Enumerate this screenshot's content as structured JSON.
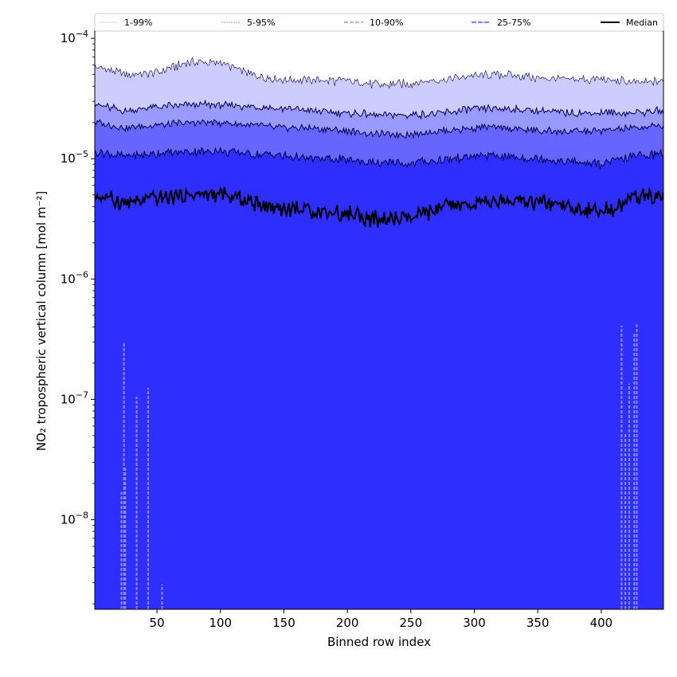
{
  "chart_data": {
    "type": "area",
    "xlabel": "Binned row index",
    "ylabel": "NO₂ tropospheric vertical column [mol m⁻²]",
    "yscale": "log",
    "xlim": [
      1,
      449
    ],
    "ylim": [
      1.8e-09,
      0.000115
    ],
    "x_ticks": [
      50,
      100,
      150,
      200,
      250,
      300,
      350,
      400
    ],
    "y_ticks": [
      {
        "value": 1e-08,
        "base": "10",
        "exp": "−8"
      },
      {
        "value": 1e-07,
        "base": "10",
        "exp": "−7"
      },
      {
        "value": 1e-06,
        "base": "10",
        "exp": "−6"
      },
      {
        "value": 1e-05,
        "base": "10",
        "exp": "−5"
      },
      {
        "value": 0.0001,
        "base": "10",
        "exp": "−4"
      }
    ],
    "grid": false,
    "legend_position": "top",
    "legend": [
      "1-99%",
      "5-95%",
      "10-90%",
      "25-75%",
      "Median"
    ],
    "colors": {
      "band_1_99": "#ccccff",
      "band_5_95": "#9999ff",
      "band_10_90": "#6666ff",
      "band_25_75": "#2e2eff",
      "median": "#000000",
      "pct_line": "#00004d"
    },
    "profile_x": [
      1,
      25,
      50,
      75,
      100,
      125,
      150,
      175,
      200,
      225,
      250,
      275,
      300,
      325,
      350,
      375,
      400,
      425,
      449
    ],
    "series": [
      {
        "name": "1-99%",
        "lower": [
          1.8e-09,
          1.8e-09,
          1.8e-09,
          1.8e-09,
          1.8e-09,
          1.8e-09,
          1.8e-09,
          1.8e-09,
          1.8e-09,
          1.8e-09,
          1.8e-09,
          1.8e-09,
          1.8e-09,
          1.8e-09,
          1.8e-09,
          1.8e-09,
          1.8e-09,
          1.8e-09,
          1.8e-09
        ],
        "upper": [
          5.8e-05,
          5e-05,
          5.2e-05,
          6.3e-05,
          6.3e-05,
          5e-05,
          4.5e-05,
          4.5e-05,
          4.4e-05,
          4.1e-05,
          4.2e-05,
          4.6e-05,
          4.9e-05,
          5e-05,
          4.7e-05,
          4.5e-05,
          4.6e-05,
          4.3e-05,
          4.4e-05
        ]
      },
      {
        "name": "5-95%",
        "lower": [
          1.8e-09,
          1.8e-09,
          1.8e-09,
          1.8e-09,
          1.8e-09,
          1.8e-09,
          1.8e-09,
          1.8e-09,
          1.8e-09,
          1.8e-09,
          1.8e-09,
          1.8e-09,
          1.8e-09,
          1.8e-09,
          1.8e-09,
          1.8e-09,
          1.8e-09,
          1.8e-09,
          1.8e-09
        ],
        "upper": [
          2.8e-05,
          2.5e-05,
          2.7e-05,
          2.8e-05,
          2.8e-05,
          2.7e-05,
          2.6e-05,
          2.5e-05,
          2.4e-05,
          2.3e-05,
          2.3e-05,
          2.4e-05,
          2.6e-05,
          2.6e-05,
          2.5e-05,
          2.4e-05,
          2.4e-05,
          2.4e-05,
          2.5e-05
        ]
      },
      {
        "name": "10-90%",
        "lower": [
          1.8e-09,
          1.8e-09,
          1.8e-09,
          1.8e-09,
          1.8e-09,
          1.8e-09,
          1.8e-09,
          1.8e-09,
          1.8e-09,
          1.8e-09,
          1.8e-09,
          1.8e-09,
          1.8e-09,
          1.8e-09,
          1.8e-09,
          1.8e-09,
          1.8e-09,
          1.8e-09,
          1.8e-09
        ],
        "upper": [
          2e-05,
          1.8e-05,
          1.9e-05,
          2e-05,
          2e-05,
          1.9e-05,
          1.8e-05,
          1.8e-05,
          1.7e-05,
          1.6e-05,
          1.6e-05,
          1.7e-05,
          1.8e-05,
          1.8e-05,
          1.7e-05,
          1.7e-05,
          1.7e-05,
          1.8e-05,
          1.9e-05
        ]
      },
      {
        "name": "25-75%",
        "lower": [
          1.8e-09,
          1.8e-09,
          1.8e-09,
          1.8e-09,
          1.8e-09,
          1.8e-09,
          1.8e-09,
          1.8e-09,
          1.8e-09,
          1.8e-09,
          1.8e-09,
          1.8e-09,
          1.8e-09,
          1.8e-09,
          1.8e-09,
          1.8e-09,
          1.8e-09,
          1.8e-09,
          1.8e-09
        ],
        "upper": [
          1.15e-05,
          1.05e-05,
          1.1e-05,
          1.15e-05,
          1.15e-05,
          1.1e-05,
          1.05e-05,
          1e-05,
          9.8e-06,
          9.2e-06,
          9.2e-06,
          9.8e-06,
          1.05e-05,
          1.05e-05,
          1e-05,
          9.5e-06,
          9e-06,
          1.05e-05,
          1.1e-05
        ]
      },
      {
        "name": "Median",
        "values": [
          5e-06,
          4.3e-06,
          4.6e-06,
          5e-06,
          5e-06,
          4.3e-06,
          3.9e-06,
          3.7e-06,
          3.5e-06,
          3.1e-06,
          3.2e-06,
          3.9e-06,
          4.2e-06,
          4.4e-06,
          4.3e-06,
          3.9e-06,
          3.5e-06,
          4.7e-06,
          4.9e-06
        ]
      }
    ],
    "lower_spikes": [
      {
        "x": 22,
        "top": 1.7e-08
      },
      {
        "x": 24,
        "top": 3e-07
      },
      {
        "x": 25,
        "top": 2.7e-08
      },
      {
        "x": 34,
        "top": 1.05e-07
      },
      {
        "x": 43,
        "top": 1.25e-07
      },
      {
        "x": 54,
        "top": 2.9e-09
      },
      {
        "x": 416,
        "top": 4.1e-07
      },
      {
        "x": 419,
        "top": 5.2e-08
      },
      {
        "x": 422,
        "top": 1.35e-07
      },
      {
        "x": 426,
        "top": 3.6e-07
      },
      {
        "x": 428,
        "top": 4.2e-07
      }
    ]
  }
}
